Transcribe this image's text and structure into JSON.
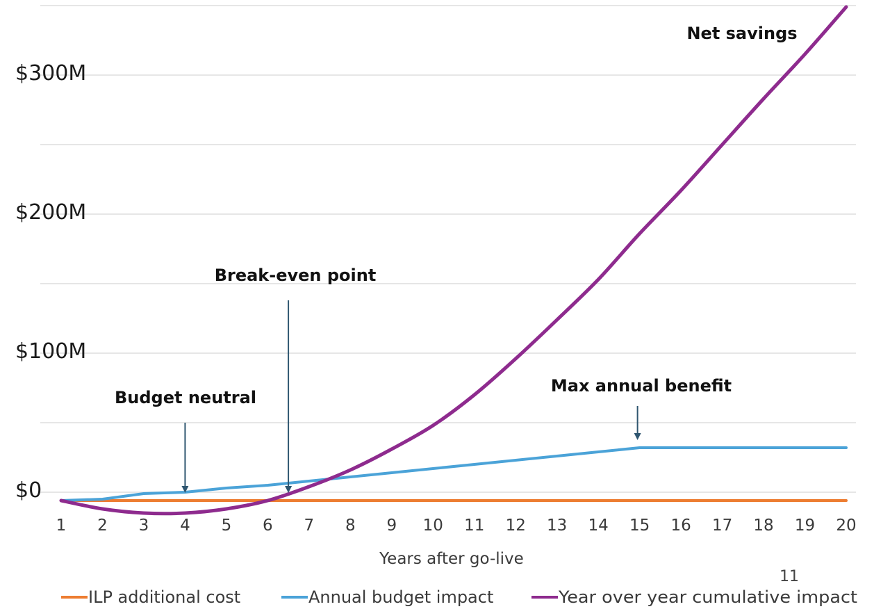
{
  "page_number": "11",
  "colors": {
    "cost": "#ed7d31",
    "annual": "#4ba3d8",
    "cumulative": "#8e2b8e",
    "grid": "#e6e6e6",
    "arrow": "#2f5670"
  },
  "chart_data": {
    "type": "line",
    "title": "",
    "xlabel": "Years after go-live",
    "ylabel": "",
    "x": [
      1,
      2,
      3,
      4,
      5,
      6,
      7,
      8,
      9,
      10,
      11,
      12,
      13,
      14,
      15,
      16,
      17,
      18,
      19,
      20
    ],
    "x_tick_labels": [
      "1",
      "2",
      "3",
      "4",
      "5",
      "6",
      "7",
      "8",
      "9",
      "10",
      "11",
      "12",
      "13",
      "14",
      "15",
      "16",
      "17",
      "18",
      "19",
      "20"
    ],
    "ylim": [
      -6,
      350
    ],
    "y_ticks": [
      {
        "value": 0,
        "label": "$0"
      },
      {
        "value": 100,
        "label": "$100M"
      },
      {
        "value": 200,
        "label": "$200M"
      },
      {
        "value": 300,
        "label": "$300M"
      }
    ],
    "grid_values": [
      50,
      100,
      150,
      200,
      250,
      300,
      350
    ],
    "grid": true,
    "legend_position": "bottom",
    "series": [
      {
        "name": "ILP additional cost",
        "color_key": "cost",
        "values": [
          -6,
          -6,
          -6,
          -6,
          -6,
          -6,
          -6,
          -6,
          -6,
          -6,
          -6,
          -6,
          -6,
          -6,
          -6,
          -6,
          -6,
          -6,
          -6,
          -6
        ]
      },
      {
        "name": "Annual budget impact",
        "color_key": "annual",
        "values": [
          -6,
          -5,
          -1,
          0,
          3,
          5,
          8,
          11,
          14,
          17,
          20,
          23,
          26,
          29,
          32,
          32,
          32,
          32,
          32,
          32
        ]
      },
      {
        "name": "Year over year cumulative impact",
        "color_key": "cumulative",
        "values": [
          -6,
          -12,
          -15,
          -15,
          -12,
          -6,
          4,
          16,
          31,
          48,
          70,
          96,
          124,
          153,
          186,
          217,
          250,
          283,
          315,
          349
        ]
      }
    ],
    "annotations": [
      {
        "id": "budget-neutral",
        "text": "Budget neutral",
        "x": 4,
        "y": 0
      },
      {
        "id": "break-even",
        "text": "Break-even point",
        "x": 6.5,
        "y": 0
      },
      {
        "id": "max-annual",
        "text": "Max annual benefit",
        "x": 15,
        "y": 32
      },
      {
        "id": "net-savings",
        "text": "Net savings"
      }
    ]
  }
}
